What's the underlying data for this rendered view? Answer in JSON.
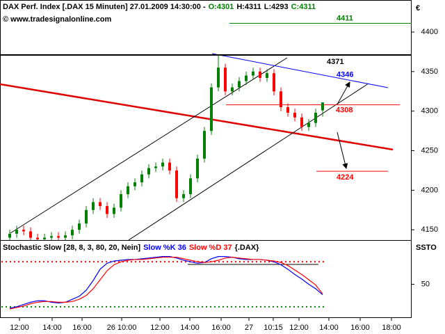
{
  "chart_data": [
    {
      "type": "candlestick",
      "title": "DAX Perf. Index [.DAX  15 Minuten] 27.01.2009 14:30:00 -",
      "info": [
        "O:4301",
        "H:4311",
        "L:4293",
        "C:4311"
      ],
      "info_colors": [
        "#008000",
        "#000000",
        "#000000",
        "#008000"
      ],
      "source": "© www.tradesignalonline.com",
      "currency": "€",
      "open": [
        4140,
        4145,
        4150,
        4148,
        4140,
        4138,
        4140,
        4142,
        4140,
        4143,
        4150,
        4158,
        4175,
        4185,
        4180,
        4170,
        4178,
        4195,
        4205,
        4210,
        4220,
        4228,
        4230,
        4235,
        4225,
        4190,
        4195,
        4215,
        4240,
        4275,
        4330,
        4355,
        4325,
        4330,
        4338,
        4345,
        4350,
        4342,
        4348,
        4325,
        4305,
        4298,
        4292,
        4280,
        4285,
        4301
      ],
      "high": [
        4150,
        4155,
        4155,
        4153,
        4145,
        4145,
        4147,
        4147,
        4148,
        4155,
        4163,
        4180,
        4190,
        4190,
        4185,
        4183,
        4200,
        4210,
        4215,
        4225,
        4233,
        4235,
        4240,
        4240,
        4230,
        4200,
        4220,
        4245,
        4280,
        4335,
        4371,
        4360,
        4335,
        4343,
        4350,
        4355,
        4355,
        4353,
        4353,
        4330,
        4310,
        4303,
        4297,
        4290,
        4303,
        4311
      ],
      "low": [
        4135,
        4140,
        4143,
        4135,
        4133,
        4133,
        4135,
        4135,
        4135,
        4138,
        4145,
        4153,
        4170,
        4175,
        4165,
        4165,
        4173,
        4190,
        4200,
        4205,
        4215,
        4223,
        4225,
        4220,
        4185,
        4185,
        4190,
        4210,
        4235,
        4270,
        4325,
        4320,
        4320,
        4325,
        4333,
        4340,
        4337,
        4337,
        4320,
        4300,
        4293,
        4287,
        4275,
        4275,
        4280,
        4293
      ],
      "close": [
        4145,
        4150,
        4148,
        4140,
        4138,
        4140,
        4142,
        4140,
        4143,
        4150,
        4158,
        4175,
        4185,
        4180,
        4170,
        4178,
        4195,
        4205,
        4210,
        4220,
        4228,
        4230,
        4235,
        4225,
        4190,
        4195,
        4215,
        4240,
        4275,
        4330,
        4355,
        4325,
        4330,
        4338,
        4345,
        4350,
        4342,
        4348,
        4325,
        4305,
        4298,
        4292,
        4280,
        4285,
        4298,
        4311
      ],
      "up_color": "#008000",
      "down_color": "#ff0000",
      "ylim": [
        4137,
        4440.5
      ],
      "yticks": [
        4150,
        4200,
        4250,
        4300,
        4350,
        4400
      ],
      "xlim": [
        -1.4,
        57.8
      ],
      "levels": [
        {
          "value": 4411,
          "color": "#008000"
        },
        {
          "value": 4371,
          "color": "#000000"
        },
        {
          "value": 4346,
          "color": "#0000ff"
        },
        {
          "value": 4308,
          "color": "#ff0000"
        },
        {
          "value": 4224,
          "color": "#ff0000"
        }
      ]
    },
    {
      "type": "line",
      "title": "Stochastic Slow [28, 8, 3, 80, 20, Nein]",
      "axis_label": "SSTO",
      "series": [
        {
          "name": "Slow %K 36",
          "color": "#0000ff",
          "values": [
            18,
            20,
            23,
            26,
            28,
            28,
            26,
            25,
            26,
            30,
            34,
            42,
            55,
            70,
            78,
            81,
            82,
            83,
            83,
            84,
            85,
            86,
            87,
            87,
            85,
            82,
            80,
            78,
            79,
            84,
            87,
            87,
            86,
            84,
            83,
            83,
            83,
            82,
            80,
            76,
            70,
            63,
            57,
            50,
            44,
            36
          ]
        },
        {
          "name": "Slow %D 37",
          "color": "#ff0000",
          "values": [
            17,
            19,
            21,
            24,
            26,
            27,
            27,
            26,
            26,
            27,
            30,
            35,
            44,
            56,
            68,
            76,
            80,
            82,
            83,
            83,
            84,
            85,
            86,
            86,
            86,
            84,
            82,
            80,
            79,
            80,
            82,
            85,
            86,
            85,
            84,
            83,
            83,
            82,
            81,
            79,
            75,
            69,
            63,
            56,
            49,
            37
          ]
        }
      ],
      "symbol": "{.DAX}",
      "ylim": [
        5,
        108
      ],
      "yticks": [
        50
      ],
      "levels": [
        {
          "value": 80,
          "color": "#ff0000"
        },
        {
          "value": 20,
          "color": "#008000"
        }
      ],
      "xlim": [
        -1.4,
        57.8
      ],
      "xticks": [
        {
          "value": 1.4,
          "label": "12:00"
        },
        {
          "value": 6.1,
          "label": "14:00"
        },
        {
          "value": 10.4,
          "label": "16:00"
        },
        {
          "value": 16.1,
          "label": "26 10:00"
        },
        {
          "value": 21.6,
          "label": "12:00"
        },
        {
          "value": 25.9,
          "label": "14:00"
        },
        {
          "value": 30.4,
          "label": "16:00"
        },
        {
          "value": 34.4,
          "label": "27"
        },
        {
          "value": 37.9,
          "label": "10:15"
        },
        {
          "value": 41.6,
          "label": "12:00"
        },
        {
          "value": 45.9,
          "label": "14:00"
        },
        {
          "value": 50.4,
          "label": "16:00"
        },
        {
          "value": 54.9,
          "label": "18:00"
        }
      ]
    }
  ]
}
